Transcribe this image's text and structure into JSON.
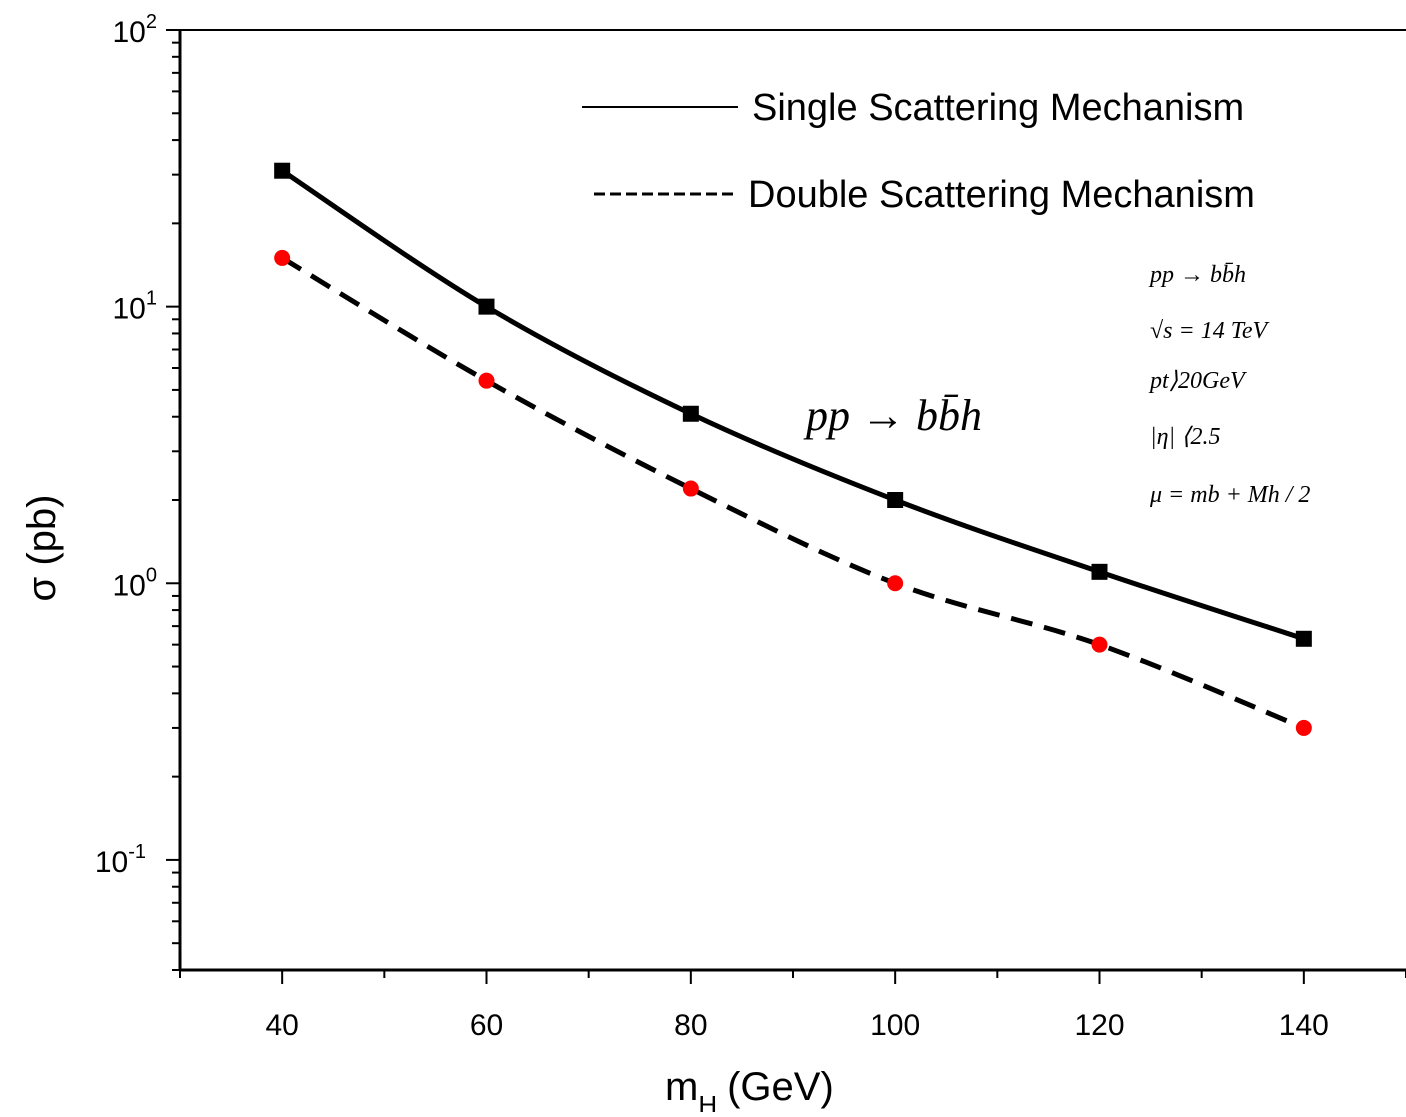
{
  "chart_data": {
    "type": "line",
    "xlabel_main": "m",
    "xlabel_sub": "H",
    "xlabel_unit": "(GeV)",
    "ylabel": "σ (pb)",
    "xlim": [
      30,
      150
    ],
    "ylim": [
      0.04,
      100
    ],
    "yscale": "log",
    "x_ticks": [
      40,
      60,
      80,
      100,
      120,
      140
    ],
    "x_tick_labels": [
      "40",
      "60",
      "80",
      "100",
      "120",
      "140"
    ],
    "y_ticks": [
      100,
      10,
      1,
      0.1
    ],
    "y_tick_labels": [
      {
        "base": "10",
        "exp": "2"
      },
      {
        "base": "10",
        "exp": "1"
      },
      {
        "base": "10",
        "exp": "0"
      },
      {
        "base": "10",
        "exp": "-1"
      }
    ],
    "x": [
      40,
      60,
      80,
      100,
      120,
      140
    ],
    "series": [
      {
        "name": "Single Scattering Mechanism",
        "values": [
          31,
          10,
          4.1,
          2.0,
          1.1,
          0.63
        ],
        "line_style": "solid",
        "marker": "square",
        "marker_color": "#000000"
      },
      {
        "name": "Double Scattering Mechanism",
        "values": [
          15,
          5.4,
          2.2,
          1.0,
          0.6,
          0.3
        ],
        "line_style": "dashed",
        "marker": "circle",
        "marker_color": "#ff0000"
      }
    ],
    "legend_position": "top-right",
    "grid": false
  },
  "annotations": {
    "process_main": "pp → bb̄h",
    "info_lines": [
      "pp → bb̄h",
      "√s = 14  TeV",
      "pt⟩20GeV",
      "|η| ⟨2.5",
      "μ = mb + Mh / 2"
    ]
  },
  "colors": {
    "line": "#000000",
    "double_marker": "#ff0000",
    "background": "#ffffff"
  }
}
